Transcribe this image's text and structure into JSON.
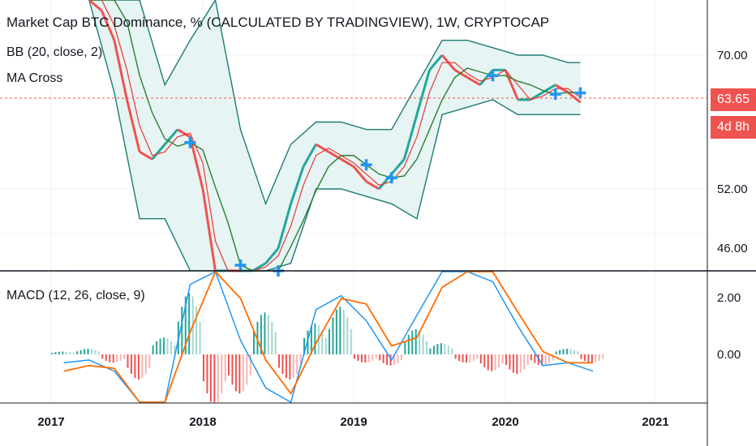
{
  "header": {
    "title": "Market Cap BTC Dominance, % (CALCULATED BY TRADINGVIEW), 1W, CRYPTOCAP",
    "bb_label": "BB (20, close, 2)",
    "ma_label": "MA Cross",
    "macd_label": "MACD (12, 26, close, 9)"
  },
  "price_axis": {
    "labels": [
      "70.00",
      "52.00",
      "46.00"
    ]
  },
  "macd_axis": {
    "labels": [
      "2.00",
      "0.00"
    ]
  },
  "time_axis": {
    "labels": [
      "2017",
      "2018",
      "2019",
      "2020",
      "2021"
    ]
  },
  "badges": {
    "last_price": "63.65",
    "countdown": "4d 8h"
  },
  "colors": {
    "up": "#26a69a",
    "down": "#ef5350",
    "bb_band": "#1b7c72",
    "bb_fill": "#e6f4f3",
    "ma_fast": "#e53935",
    "ma_slow": "#2e7d32",
    "macd": "#2196f3",
    "signal": "#ff6d00",
    "cross_marker": "#2196f3"
  },
  "chart_data": [
    {
      "type": "line",
      "title": "Market Cap BTC Dominance, % (CALCULATED BY TRADINGVIEW), 1W, CRYPTOCAP",
      "x_range": [
        "2016-11",
        "2021-06"
      ],
      "y_ticks": [
        46.0,
        52.0,
        70.0
      ],
      "last_value": 63.65,
      "grid": true,
      "price": {
        "x": [
          "2017-04",
          "2017-05",
          "2017-06",
          "2017-07",
          "2017-08",
          "2017-09",
          "2017-10",
          "2017-11",
          "2017-12",
          "2018-01",
          "2018-02",
          "2018-03",
          "2018-04",
          "2018-05",
          "2018-06",
          "2018-07",
          "2018-08",
          "2018-09",
          "2018-10",
          "2018-11",
          "2018-12",
          "2019-01",
          "2019-02",
          "2019-03",
          "2019-04",
          "2019-05",
          "2019-06",
          "2019-07",
          "2019-08",
          "2019-09",
          "2019-10",
          "2019-11",
          "2019-12",
          "2020-01",
          "2020-02",
          "2020-03",
          "2020-04",
          "2020-05",
          "2020-06",
          "2020-07"
        ],
        "values": [
          86,
          76,
          72,
          64,
          57,
          56,
          58,
          60,
          59,
          52,
          38,
          41,
          36,
          41,
          42,
          44,
          50,
          55,
          58,
          57,
          56,
          55,
          53,
          52,
          54,
          56,
          62,
          68,
          70,
          68,
          67,
          66,
          68,
          68,
          64,
          64,
          65,
          66,
          65,
          63.65
        ]
      },
      "bollinger": {
        "x": [
          "2017-04",
          "2017-06",
          "2017-08",
          "2017-10",
          "2017-12",
          "2018-02",
          "2018-04",
          "2018-06",
          "2018-08",
          "2018-10",
          "2018-12",
          "2019-02",
          "2019-04",
          "2019-06",
          "2019-08",
          "2019-10",
          "2019-12",
          "2020-02",
          "2020-04",
          "2020-06",
          "2020-07"
        ],
        "upper": [
          92,
          90,
          80,
          66,
          72,
          78,
          60,
          50,
          58,
          61,
          61,
          60,
          60,
          66,
          72,
          72,
          71,
          70,
          70,
          69,
          69
        ],
        "lower": [
          78,
          65,
          48,
          48,
          41,
          36,
          30,
          34,
          42,
          52,
          52,
          51,
          50,
          48,
          62,
          63,
          64,
          62,
          62,
          62,
          62
        ]
      },
      "ma_cross_markers": [
        "2017-12",
        "2018-04",
        "2018-07",
        "2019-02",
        "2019-04",
        "2019-12",
        "2020-05",
        "2020-07"
      ]
    },
    {
      "type": "bar",
      "title": "MACD (12, 26, close, 9)",
      "y_ticks": [
        0.0,
        2.0
      ],
      "histogram": {
        "x": [
          "2017-01",
          "2017-03",
          "2017-05",
          "2017-07",
          "2017-09",
          "2017-11",
          "2018-01",
          "2018-03",
          "2018-05",
          "2018-07",
          "2018-09",
          "2018-11",
          "2019-01",
          "2019-03",
          "2019-05",
          "2019-07",
          "2019-09",
          "2019-11",
          "2020-01",
          "2020-03",
          "2020-05",
          "2020-07"
        ],
        "values": [
          0.1,
          0.2,
          -0.3,
          -0.9,
          0.6,
          2.2,
          -1.8,
          -1.4,
          1.5,
          -0.9,
          1.1,
          1.7,
          -0.3,
          -0.4,
          0.9,
          0.4,
          -0.3,
          -0.6,
          -0.7,
          -0.4,
          0.2,
          -0.3
        ]
      },
      "macd_line": [
        -0.3,
        -0.2,
        -0.6,
        -2.5,
        -2.0,
        2.5,
        4.6,
        0.5,
        -1.2,
        -1.8,
        1.6,
        2.1,
        1.2,
        -0.2,
        1.4,
        3.2,
        3.8,
        2.6,
        1.0,
        -0.4,
        -0.3,
        -0.6
      ],
      "signal_line": [
        -0.6,
        -0.4,
        -0.5,
        -1.8,
        -2.4,
        0.8,
        3.2,
        2.0,
        -0.2,
        -1.4,
        0.4,
        2.0,
        1.8,
        0.3,
        0.6,
        2.4,
        3.8,
        3.4,
        1.5,
        0.1,
        -0.3,
        -0.3
      ]
    }
  ]
}
